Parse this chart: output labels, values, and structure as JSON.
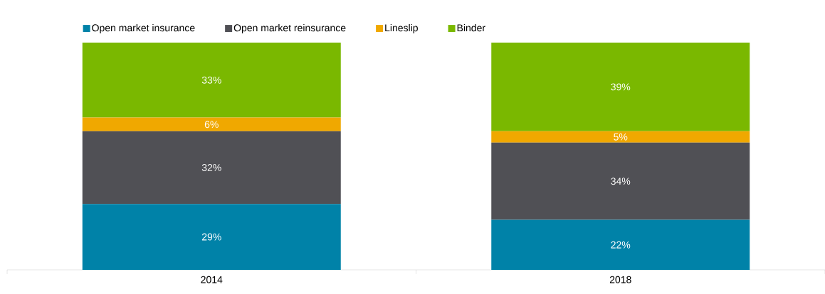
{
  "chart_data": {
    "type": "bar",
    "stacked": true,
    "categories": [
      "2014",
      "2018"
    ],
    "legend": "top",
    "series": [
      {
        "name": "Open market insurance",
        "color": "#0082a8",
        "values": [
          29,
          22
        ],
        "value_labels": [
          "29%",
          "22%"
        ]
      },
      {
        "name": "Open market reinsurance",
        "color": "#505055",
        "values": [
          32,
          34
        ],
        "value_labels": [
          "32%",
          "34%"
        ]
      },
      {
        "name": "Lineslip",
        "color": "#f0a800",
        "values": [
          6,
          5
        ],
        "value_labels": [
          "6%",
          "5%"
        ]
      },
      {
        "name": "Binder",
        "color": "#7ab800",
        "values": [
          33,
          39
        ],
        "value_labels": [
          "33%",
          "39%"
        ]
      }
    ]
  }
}
